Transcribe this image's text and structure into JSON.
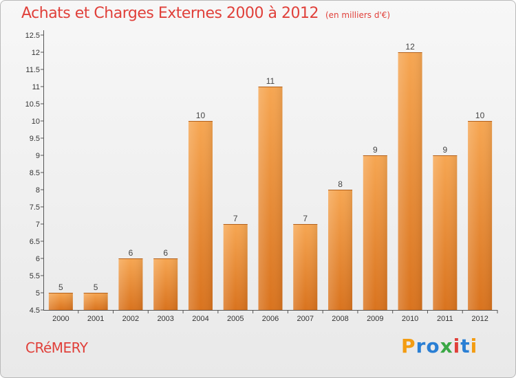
{
  "header": {
    "title": "Achats et Charges Externes 2000 à 2012",
    "unit": "(en milliers d'€)"
  },
  "footer": {
    "commune": "CRéMERY",
    "logo_letters": [
      "P",
      "r",
      "o",
      "x",
      "i",
      "t",
      "i"
    ],
    "logo_colors": [
      "#f39c12",
      "#2a7fd4",
      "#2a7fd4",
      "#3aa845",
      "#e0403a",
      "#2a7fd4",
      "#f39c12"
    ]
  },
  "colors": {
    "bar_top": "#f6a652",
    "bar_bottom": "#d9731e",
    "title": "#e0403a"
  },
  "chart_data": {
    "type": "bar",
    "title": "Achats et Charges Externes 2000 à 2012",
    "categories": [
      "2000",
      "2001",
      "2002",
      "2003",
      "2004",
      "2005",
      "2006",
      "2007",
      "2008",
      "2009",
      "2010",
      "2011",
      "2012"
    ],
    "values": [
      5,
      5,
      6,
      6,
      10,
      7,
      11,
      7,
      8,
      9,
      12,
      9,
      10
    ],
    "data_labels": [
      "5",
      "5",
      "6",
      "6",
      "10",
      "7",
      "11",
      "7",
      "8",
      "9",
      "12",
      "9",
      "10"
    ],
    "y_ticks": [
      "4.5",
      "5",
      "5.5",
      "6",
      "6.5",
      "7",
      "7.5",
      "8",
      "8.5",
      "9",
      "9.5",
      "10",
      "10.5",
      "11",
      "11.5",
      "12",
      "12.5"
    ],
    "y_tick_values": [
      4.5,
      5,
      5.5,
      6,
      6.5,
      7,
      7.5,
      8,
      8.5,
      9,
      9.5,
      10,
      10.5,
      11,
      11.5,
      12,
      12.5
    ],
    "ylim": [
      4.5,
      12.5
    ],
    "grid": false,
    "legend": "none"
  }
}
